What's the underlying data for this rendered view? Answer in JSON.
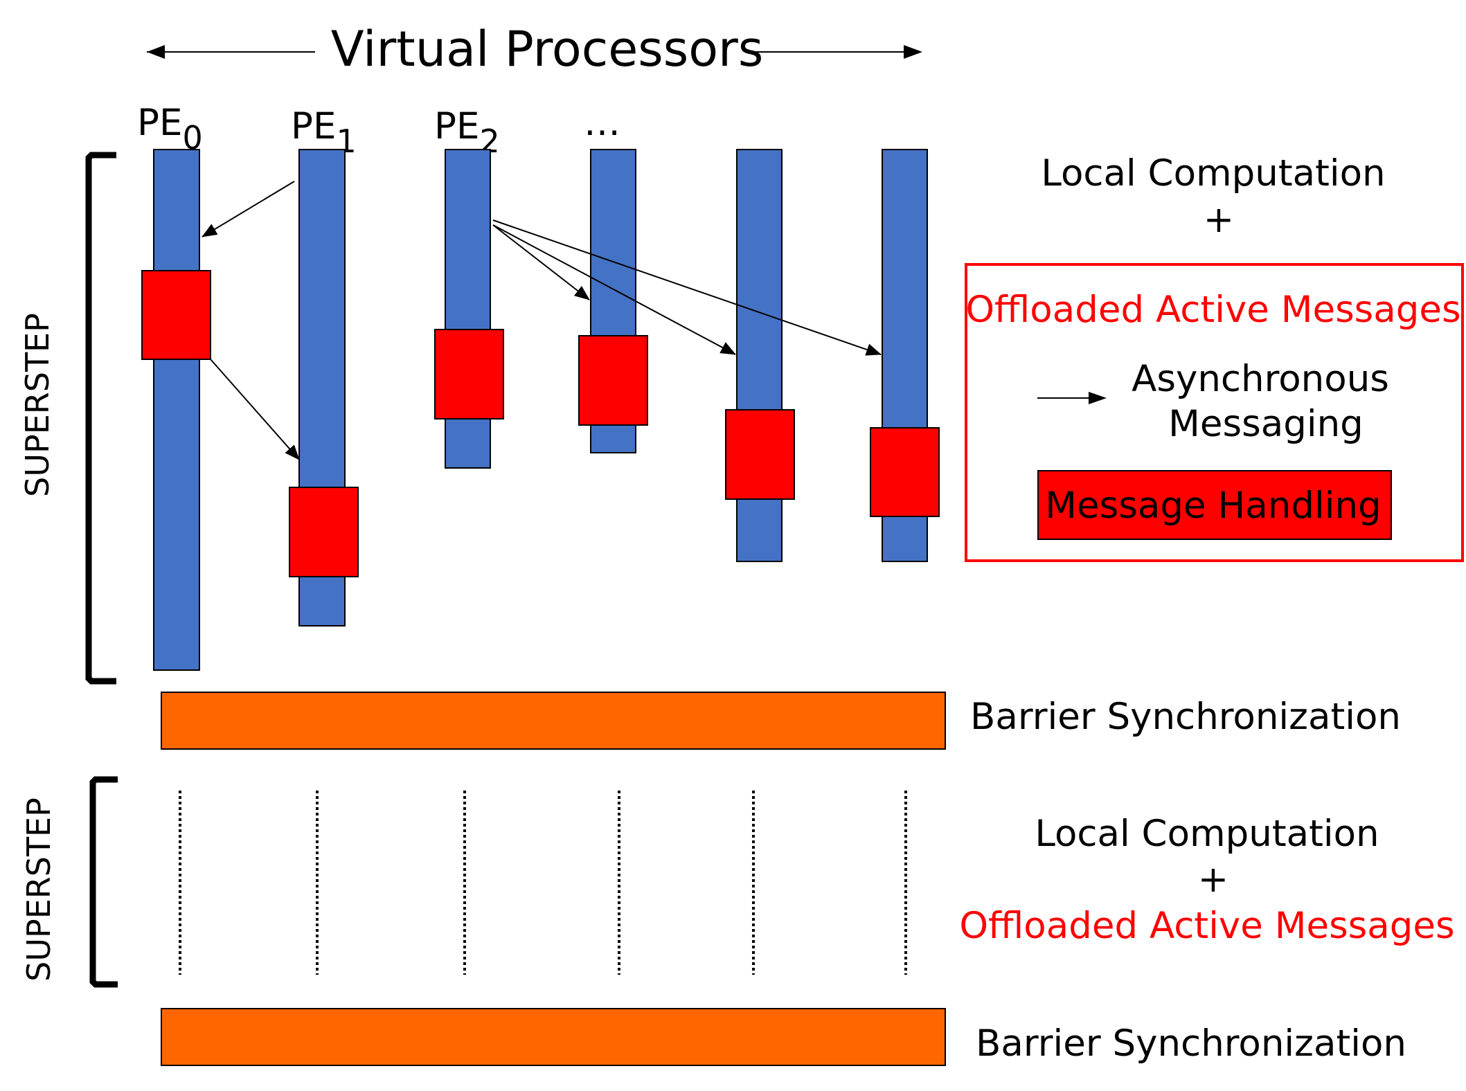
{
  "header": {
    "title": "Virtual Processors"
  },
  "pe_labels": [
    {
      "base": "PE",
      "sub": "0"
    },
    {
      "base": "PE",
      "sub": "1"
    },
    {
      "base": "PE",
      "sub": "2"
    },
    {
      "base": "…",
      "sub": ""
    }
  ],
  "superstep_label": "SUPERSTEP",
  "superstep1": {
    "local_computation": "Local Computation",
    "plus": "+",
    "legend": {
      "title": "Offloaded Active Messages",
      "async_line1": "Asynchronous",
      "async_line2": "Messaging",
      "handling": "Message Handling"
    }
  },
  "barrier": "Barrier Synchronization",
  "superstep2": {
    "local_computation": "Local Computation",
    "plus": "+",
    "offloaded": "Offloaded Active Messages"
  },
  "colors": {
    "processor": "#4472c4",
    "handler": "#ff0000",
    "barrier": "#ff6600",
    "accent_text": "#ff0000"
  }
}
